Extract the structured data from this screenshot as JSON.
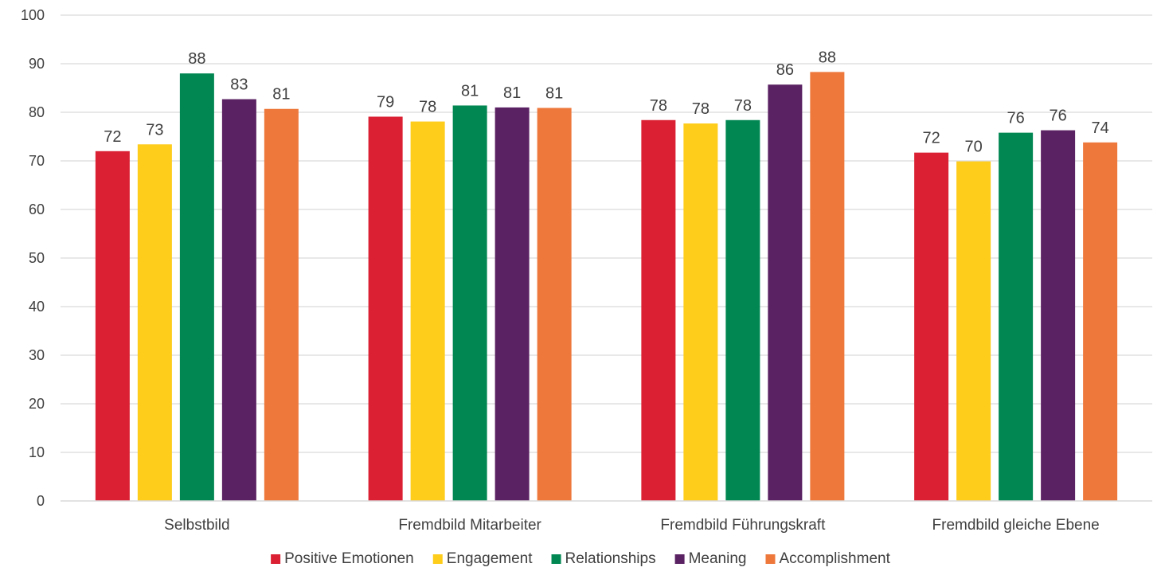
{
  "chart_data": {
    "type": "bar",
    "title": "",
    "xlabel": "",
    "ylabel": "",
    "ylim": [
      0,
      100
    ],
    "yticks": [
      0,
      10,
      20,
      30,
      40,
      50,
      60,
      70,
      80,
      90,
      100
    ],
    "grid": true,
    "legend_position": "bottom",
    "categories": [
      "Selbstbild",
      "Fremdbild Mitarbeiter",
      "Fremdbild Führungskraft",
      "Fremdbild gleiche Ebene"
    ],
    "series": [
      {
        "name": "Positive Emotionen",
        "color": "#DA2032",
        "values": [
          72,
          79.1,
          78.4,
          71.7
        ],
        "labels": [
          "72",
          "79",
          "78",
          "72"
        ]
      },
      {
        "name": "Engagement",
        "color": "#FECC1A",
        "values": [
          73.4,
          78.1,
          77.7,
          69.9
        ],
        "labels": [
          "73",
          "78",
          "78",
          "70"
        ]
      },
      {
        "name": "Relationships",
        "color": "#008752",
        "values": [
          88,
          81.4,
          78.4,
          75.8
        ],
        "labels": [
          "88",
          "81",
          "78",
          "76"
        ]
      },
      {
        "name": "Meaning",
        "color": "#5B2263",
        "values": [
          82.7,
          81,
          85.7,
          76.3
        ],
        "labels": [
          "83",
          "81",
          "86",
          "76"
        ]
      },
      {
        "name": "Accomplishment",
        "color": "#EE783C",
        "values": [
          80.7,
          80.9,
          88.3,
          73.8
        ],
        "labels": [
          "81",
          "81",
          "88",
          "74"
        ]
      }
    ]
  }
}
